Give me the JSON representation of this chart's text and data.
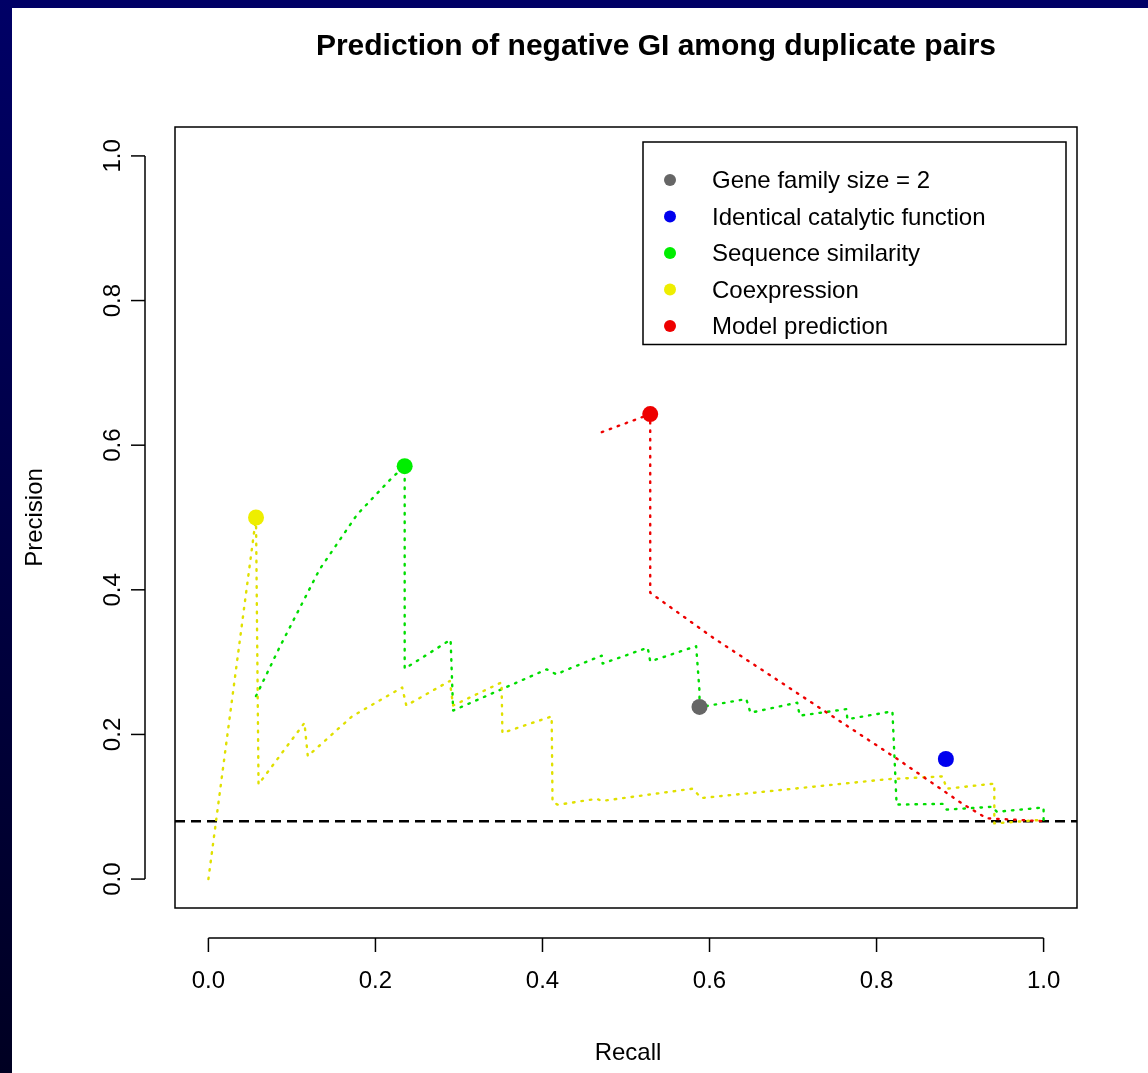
{
  "chart_data": {
    "type": "scatter",
    "title": "Prediction of negative GI among duplicate pairs",
    "xlabel": "Recall",
    "ylabel": "Precision",
    "xlim": [
      -0.04,
      1.04
    ],
    "ylim": [
      -0.04,
      1.04
    ],
    "xticks": [
      {
        "value": 0,
        "label": "0.0"
      },
      0.2,
      0.4,
      0.6,
      0.8,
      {
        "value": 1,
        "label": "1.0"
      }
    ],
    "yticks": [
      {
        "value": 0,
        "label": "0.0"
      },
      0.2,
      0.4,
      0.6,
      0.8,
      {
        "value": 1,
        "label": "1.0"
      }
    ],
    "grid": false,
    "legend": "top right",
    "marker": "circle",
    "ref_lines": [
      {
        "axis": "y",
        "value": 0.08,
        "color": "#000000",
        "line_style": "dashed"
      }
    ],
    "series": [
      {
        "type": "line",
        "color": "#00dd00",
        "line_style": "dotted",
        "marker": "none",
        "x": [
          0.057,
          0.085,
          0.133,
          0.178,
          0.219,
          0.235,
          0.235,
          0.29,
          0.293,
          0.405,
          0.417,
          0.426,
          0.471,
          0.472,
          0.526,
          0.529,
          0.584,
          0.588,
          0.588,
          0.6,
          0.644,
          0.649,
          0.705,
          0.708,
          0.764,
          0.765,
          0.819,
          0.824,
          0.879,
          0.884,
          0.939,
          0.944,
          1.0,
          1.0
        ],
        "values": [
          0.253,
          0.32,
          0.428,
          0.504,
          0.554,
          0.571,
          0.291,
          0.331,
          0.233,
          0.29,
          0.283,
          0.288,
          0.309,
          0.298,
          0.32,
          0.301,
          0.322,
          0.26,
          0.238,
          0.24,
          0.249,
          0.23,
          0.244,
          0.226,
          0.235,
          0.221,
          0.232,
          0.103,
          0.104,
          0.096,
          0.1,
          0.093,
          0.099,
          0.082
        ]
      },
      {
        "type": "line",
        "color": "#e0e000",
        "line_style": "dotted",
        "marker": "none",
        "x": [
          0,
          0.057,
          0.06,
          0.115,
          0.119,
          0.172,
          0.232,
          0.237,
          0.289,
          0.293,
          0.351,
          0.352,
          0.411,
          0.412,
          0.418,
          0.42,
          0.465,
          0.471,
          0.58,
          0.59,
          0.812,
          0.879,
          0.884,
          0.941,
          0.941,
          0.999
        ],
        "values": [
          0,
          0.5,
          0.131,
          0.216,
          0.17,
          0.225,
          0.265,
          0.24,
          0.274,
          0.24,
          0.272,
          0.202,
          0.225,
          0.107,
          0.103,
          0.103,
          0.111,
          0.108,
          0.125,
          0.112,
          0.138,
          0.142,
          0.125,
          0.132,
          0.077,
          0.082
        ]
      },
      {
        "type": "line",
        "color": "#ee0000",
        "line_style": "dotted",
        "marker": "none",
        "x": [
          0.471,
          0.529,
          0.529,
          0.604,
          0.825,
          0.903,
          0.932,
          1.0
        ],
        "values": [
          0.618,
          0.643,
          0.396,
          0.334,
          0.166,
          0.104,
          0.084,
          0.08
        ]
      },
      {
        "name": "Gene family size = 2",
        "color": "#666666",
        "x": [
          0.588
        ],
        "values": [
          0.238
        ]
      },
      {
        "name": "Identical catalytic function",
        "color": "#0000ee",
        "x": [
          0.883
        ],
        "values": [
          0.166
        ]
      },
      {
        "name": "Sequence similarity",
        "color": "#00ee00",
        "x": [
          0.235
        ],
        "values": [
          0.571
        ]
      },
      {
        "name": "Coexpression",
        "color": "#eeee00",
        "x": [
          0.057
        ],
        "values": [
          0.5
        ]
      },
      {
        "name": "Model prediction",
        "color": "#ee0000",
        "x": [
          0.529
        ],
        "values": [
          0.643
        ]
      }
    ]
  }
}
